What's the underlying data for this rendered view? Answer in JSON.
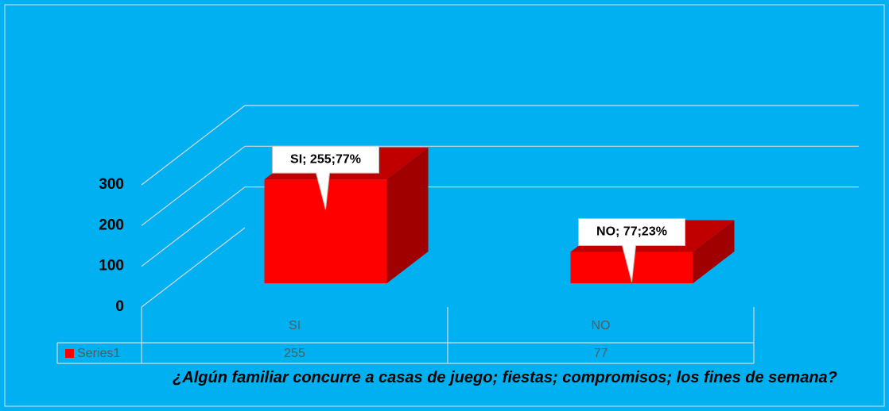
{
  "chart_data": {
    "type": "bar3d",
    "title": "¿Algún familiar concurre a casas de juego; fiestas; compromisos; los fines de semana?",
    "categories": [
      "SI",
      "NO"
    ],
    "series": [
      {
        "name": "Series1",
        "color": "#ff0000",
        "values": [
          255,
          77
        ],
        "value_labels": [
          "SI; 255;77%",
          "NO; 77;23%"
        ]
      }
    ],
    "ylim": [
      0,
      300
    ],
    "yticks": [
      0,
      100,
      200,
      300
    ],
    "grid": true
  }
}
